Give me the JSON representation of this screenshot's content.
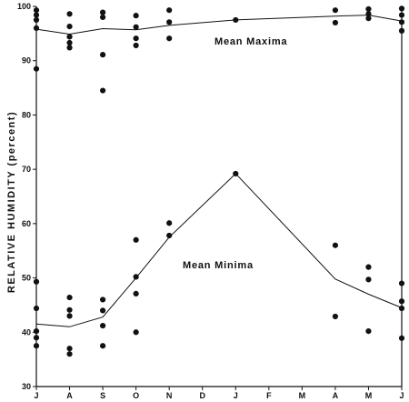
{
  "chart_data": {
    "type": "scatter",
    "title": "",
    "ylabel": "RELATIVE HUMIDITY (percent)",
    "xlabel": "",
    "categories": [
      "J",
      "A",
      "S",
      "O",
      "N",
      "D",
      "J",
      "F",
      "M",
      "A",
      "M",
      "J"
    ],
    "ylim": [
      30,
      100
    ],
    "yticks": [
      30,
      40,
      50,
      60,
      70,
      80,
      90,
      100
    ],
    "grid": false,
    "legend": "none",
    "series": [
      {
        "name": "Mean Maxima",
        "kind": "line",
        "points": [
          {
            "x": 0,
            "y": 95.8
          },
          {
            "x": 1,
            "y": 94.9
          },
          {
            "x": 2,
            "y": 95.9
          },
          {
            "x": 3,
            "y": 95.7
          },
          {
            "x": 4,
            "y": 96.5
          },
          {
            "x": 6,
            "y": 97.5
          },
          {
            "x": 9,
            "y": 98.2
          },
          {
            "x": 10,
            "y": 98.4
          },
          {
            "x": 11,
            "y": 97.3
          }
        ]
      },
      {
        "name": "Mean Minima",
        "kind": "line",
        "points": [
          {
            "x": 0,
            "y": 41.5
          },
          {
            "x": 1,
            "y": 41.0
          },
          {
            "x": 2,
            "y": 42.8
          },
          {
            "x": 3,
            "y": 50.0
          },
          {
            "x": 4,
            "y": 57.5
          },
          {
            "x": 6,
            "y": 69.2
          },
          {
            "x": 9,
            "y": 49.8
          },
          {
            "x": 10,
            "y": 47.0
          },
          {
            "x": 11,
            "y": 44.5
          }
        ]
      },
      {
        "name": "",
        "kind": "points",
        "points": [
          {
            "x": 0,
            "y": 99.3
          },
          {
            "x": 0,
            "y": 98.4
          },
          {
            "x": 0,
            "y": 97.5
          },
          {
            "x": 0,
            "y": 96.0
          },
          {
            "x": 0,
            "y": 88.5
          },
          {
            "x": 1,
            "y": 98.6
          },
          {
            "x": 1,
            "y": 96.3
          },
          {
            "x": 1,
            "y": 94.4
          },
          {
            "x": 1,
            "y": 93.3
          },
          {
            "x": 1,
            "y": 92.4
          },
          {
            "x": 2,
            "y": 98.9
          },
          {
            "x": 2,
            "y": 98.0
          },
          {
            "x": 2,
            "y": 91.1
          },
          {
            "x": 2,
            "y": 84.5
          },
          {
            "x": 3,
            "y": 98.3
          },
          {
            "x": 3,
            "y": 96.2
          },
          {
            "x": 3,
            "y": 94.1
          },
          {
            "x": 3,
            "y": 92.8
          },
          {
            "x": 4,
            "y": 99.3
          },
          {
            "x": 4,
            "y": 97.1
          },
          {
            "x": 4,
            "y": 94.1
          },
          {
            "x": 6,
            "y": 97.5
          },
          {
            "x": 9,
            "y": 99.3
          },
          {
            "x": 9,
            "y": 97.0
          },
          {
            "x": 10,
            "y": 99.5
          },
          {
            "x": 10,
            "y": 98.6
          },
          {
            "x": 10,
            "y": 97.8
          },
          {
            "x": 11,
            "y": 99.6
          },
          {
            "x": 11,
            "y": 98.4
          },
          {
            "x": 11,
            "y": 97.1
          },
          {
            "x": 11,
            "y": 95.5
          },
          {
            "x": 0,
            "y": 49.3
          },
          {
            "x": 0,
            "y": 44.4
          },
          {
            "x": 0,
            "y": 40.2
          },
          {
            "x": 0,
            "y": 39.0
          },
          {
            "x": 0,
            "y": 37.5
          },
          {
            "x": 1,
            "y": 46.4
          },
          {
            "x": 1,
            "y": 44.1
          },
          {
            "x": 1,
            "y": 43.0
          },
          {
            "x": 1,
            "y": 37.0
          },
          {
            "x": 1,
            "y": 36.0
          },
          {
            "x": 2,
            "y": 46.0
          },
          {
            "x": 2,
            "y": 44.0
          },
          {
            "x": 2,
            "y": 41.2
          },
          {
            "x": 2,
            "y": 37.5
          },
          {
            "x": 3,
            "y": 57.0
          },
          {
            "x": 3,
            "y": 50.2
          },
          {
            "x": 3,
            "y": 47.1
          },
          {
            "x": 3,
            "y": 40.0
          },
          {
            "x": 4,
            "y": 60.1
          },
          {
            "x": 4,
            "y": 57.8
          },
          {
            "x": 6,
            "y": 69.2
          },
          {
            "x": 9,
            "y": 56.0
          },
          {
            "x": 9,
            "y": 42.9
          },
          {
            "x": 10,
            "y": 52.0
          },
          {
            "x": 10,
            "y": 49.7
          },
          {
            "x": 10,
            "y": 40.2
          },
          {
            "x": 11,
            "y": 49.0
          },
          {
            "x": 11,
            "y": 45.7
          },
          {
            "x": 11,
            "y": 44.4
          },
          {
            "x": 11,
            "y": 38.9
          }
        ]
      }
    ]
  }
}
